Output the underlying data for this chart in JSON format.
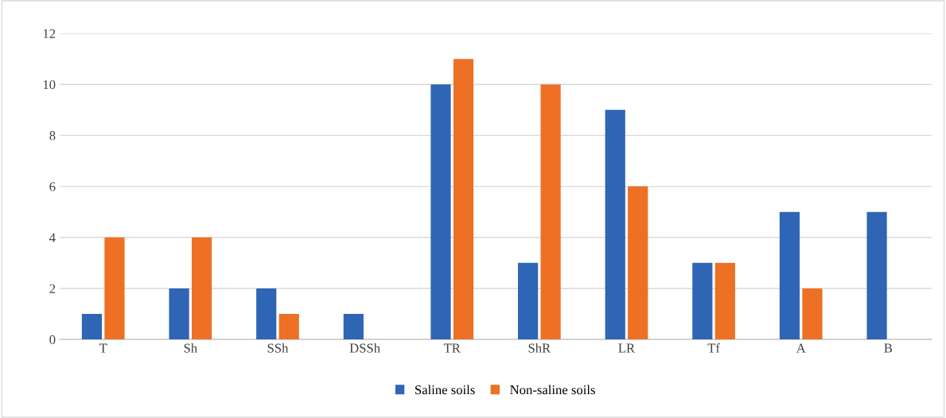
{
  "chart_data": {
    "type": "bar",
    "categories": [
      "T",
      "Sh",
      "SSh",
      "DSSh",
      "TR",
      "ShR",
      "LR",
      "Tf",
      "A",
      "B"
    ],
    "series": [
      {
        "name": "Saline soils",
        "color": "#2e65b5",
        "values": [
          1,
          2,
          2,
          1,
          10,
          3,
          9,
          3,
          5,
          5
        ]
      },
      {
        "name": "Non-saline soils",
        "color": "#ed7024",
        "values": [
          4,
          4,
          1,
          0,
          11,
          10,
          6,
          3,
          2,
          0
        ]
      }
    ],
    "ylim": [
      0,
      12
    ],
    "yticks": [
      0,
      2,
      4,
      6,
      8,
      10,
      12
    ],
    "grid": "y",
    "legend": "bottom"
  }
}
